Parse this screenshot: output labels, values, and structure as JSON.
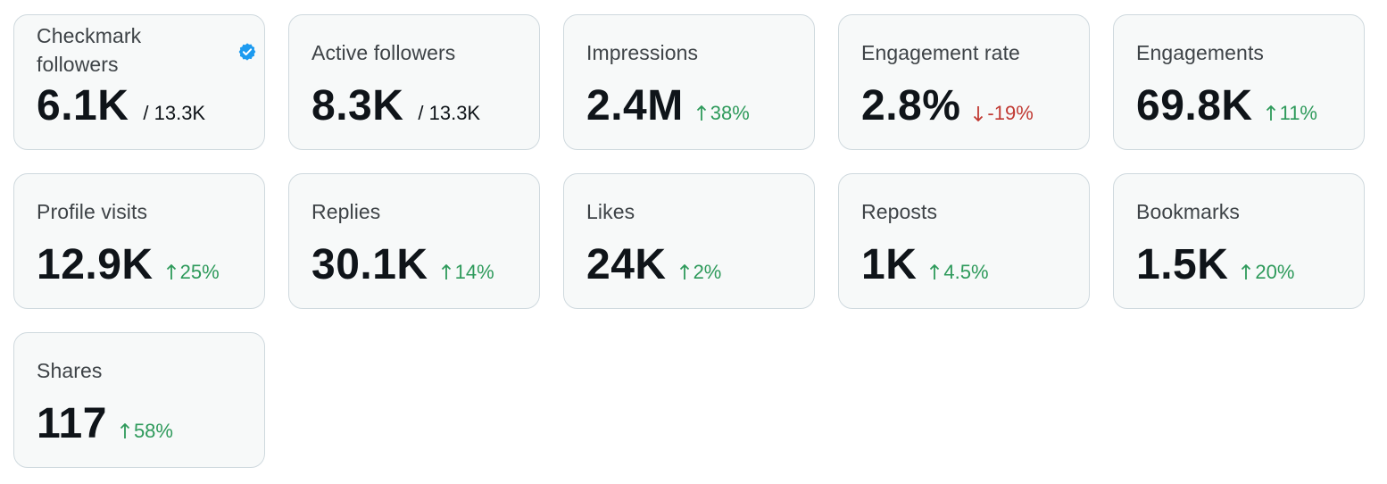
{
  "colors": {
    "positive": "#2e9a5b",
    "negative": "#c13a33",
    "verified": "#1d9bf0",
    "card_background": "#f7f9f9",
    "card_border": "#cfd9de"
  },
  "cards": [
    {
      "label": "Checkmark followers",
      "value": "6.1K",
      "total": "/ 13.3K",
      "icon": "verified-badge-icon"
    },
    {
      "label": "Active followers",
      "value": "8.3K",
      "total": "/ 13.3K"
    },
    {
      "label": "Impressions",
      "value": "2.4M",
      "delta": "38%",
      "direction": "up"
    },
    {
      "label": "Engagement rate",
      "value": "2.8%",
      "delta": "-19%",
      "direction": "down"
    },
    {
      "label": "Engagements",
      "value": "69.8K",
      "delta": "11%",
      "direction": "up"
    },
    {
      "label": "Profile visits",
      "value": "12.9K",
      "delta": "25%",
      "direction": "up"
    },
    {
      "label": "Replies",
      "value": "30.1K",
      "delta": "14%",
      "direction": "up"
    },
    {
      "label": "Likes",
      "value": "24K",
      "delta": "2%",
      "direction": "up"
    },
    {
      "label": "Reposts",
      "value": "1K",
      "delta": "4.5%",
      "direction": "up"
    },
    {
      "label": "Bookmarks",
      "value": "1.5K",
      "delta": "20%",
      "direction": "up"
    },
    {
      "label": "Shares",
      "value": "117",
      "delta": "58%",
      "direction": "up"
    }
  ]
}
